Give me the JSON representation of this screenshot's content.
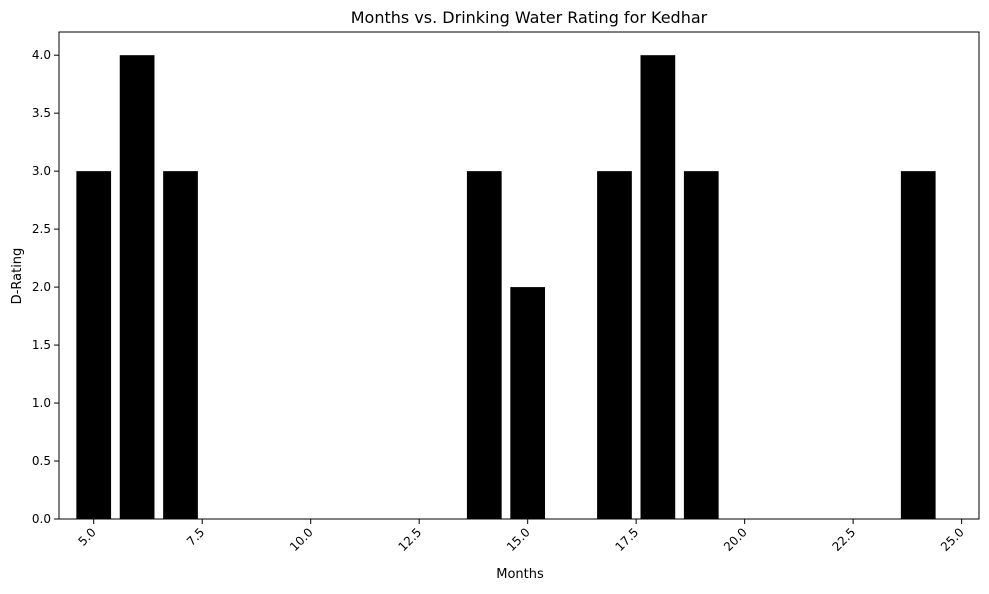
{
  "chart_data": {
    "type": "bar",
    "title": "Months vs. Drinking Water Rating for Kedhar",
    "xlabel": "Months",
    "ylabel": "D-Rating",
    "x": [
      5,
      6,
      7,
      14,
      15,
      17,
      18,
      19,
      24
    ],
    "values": [
      3,
      4,
      3,
      3,
      2,
      3,
      4,
      3,
      3
    ],
    "bar_width": 0.8,
    "xlim": [
      4.2,
      25.4
    ],
    "ylim": [
      0,
      4.2
    ],
    "xticks": [
      5.0,
      7.5,
      10.0,
      12.5,
      15.0,
      17.5,
      20.0,
      22.5,
      25.0
    ],
    "xtick_labels": [
      "5.0",
      "7.5",
      "10.0",
      "12.5",
      "15.0",
      "17.5",
      "20.0",
      "22.5",
      "25.0"
    ],
    "yticks": [
      0.0,
      0.5,
      1.0,
      1.5,
      2.0,
      2.5,
      3.0,
      3.5,
      4.0
    ],
    "ytick_labels": [
      "0.0",
      "0.5",
      "1.0",
      "1.5",
      "2.0",
      "2.5",
      "3.0",
      "3.5",
      "4.0"
    ],
    "bar_color": "#000000",
    "grid": false,
    "legend": "none"
  }
}
